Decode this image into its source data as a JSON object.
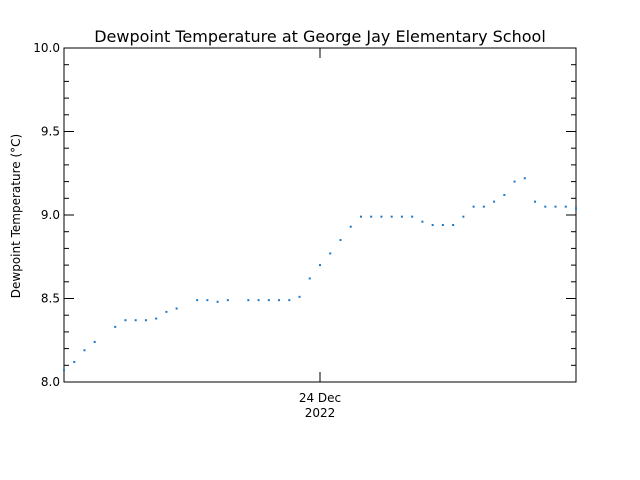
{
  "chart_data": {
    "type": "scatter",
    "title": "Dewpoint Temperature at George Jay Elementary School",
    "ylabel": "Dewpoint Temperature (°C)",
    "xlabel": "",
    "x_tick_labels": [
      {
        "x": 0.5,
        "line1": "24 Dec",
        "line2": "2022"
      }
    ],
    "xlim": [
      0,
      1
    ],
    "ylim": [
      8.0,
      10.0
    ],
    "y_ticks": [
      8.0,
      8.5,
      9.0,
      9.5,
      10.0
    ],
    "y_tick_labels": [
      "8.0",
      "8.5",
      "9.0",
      "9.5",
      "10.0"
    ],
    "y_minor_step": 0.1,
    "grid": false,
    "marker_color": "#1f77c4",
    "series": [
      {
        "points": [
          [
            0.0,
            8.07
          ],
          [
            0.02,
            8.12
          ],
          [
            0.04,
            8.19
          ],
          [
            0.06,
            8.24
          ],
          [
            0.1,
            8.33
          ],
          [
            0.12,
            8.37
          ],
          [
            0.14,
            8.37
          ],
          [
            0.16,
            8.37
          ],
          [
            0.18,
            8.38
          ],
          [
            0.2,
            8.42
          ],
          [
            0.22,
            8.44
          ],
          [
            0.26,
            8.49
          ],
          [
            0.28,
            8.49
          ],
          [
            0.3,
            8.48
          ],
          [
            0.32,
            8.49
          ],
          [
            0.36,
            8.49
          ],
          [
            0.38,
            8.49
          ],
          [
            0.4,
            8.49
          ],
          [
            0.42,
            8.49
          ],
          [
            0.44,
            8.49
          ],
          [
            0.46,
            8.51
          ],
          [
            0.48,
            8.62
          ],
          [
            0.5,
            8.7
          ],
          [
            0.52,
            8.77
          ],
          [
            0.54,
            8.85
          ],
          [
            0.56,
            8.93
          ],
          [
            0.58,
            8.99
          ],
          [
            0.6,
            8.99
          ],
          [
            0.62,
            8.99
          ],
          [
            0.64,
            8.99
          ],
          [
            0.66,
            8.99
          ],
          [
            0.68,
            8.99
          ],
          [
            0.7,
            8.96
          ],
          [
            0.72,
            8.94
          ],
          [
            0.74,
            8.94
          ],
          [
            0.76,
            8.94
          ],
          [
            0.78,
            8.99
          ],
          [
            0.8,
            9.05
          ],
          [
            0.82,
            9.05
          ],
          [
            0.84,
            9.08
          ],
          [
            0.86,
            9.12
          ],
          [
            0.88,
            9.2
          ],
          [
            0.9,
            9.22
          ],
          [
            0.92,
            9.08
          ],
          [
            0.94,
            9.05
          ],
          [
            0.96,
            9.05
          ],
          [
            0.98,
            9.05
          ],
          [
            1.0,
            9.04
          ]
        ]
      }
    ]
  }
}
